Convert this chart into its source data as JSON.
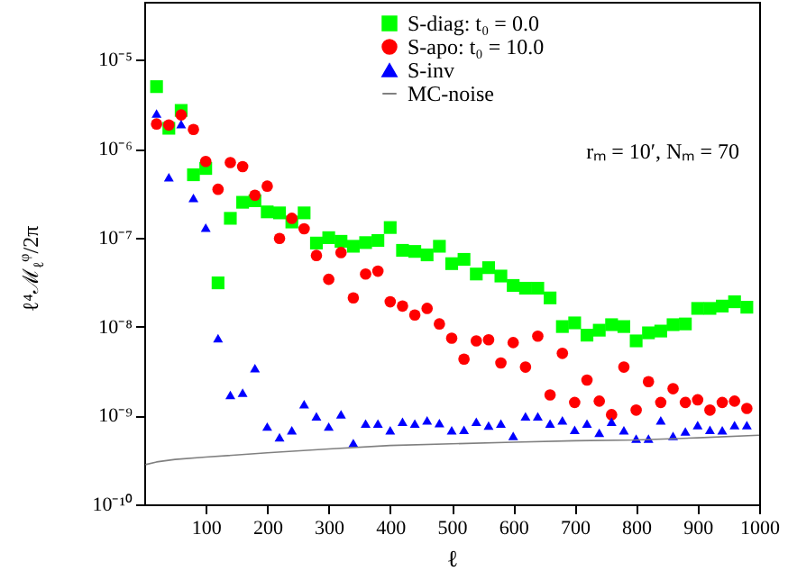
{
  "chart_data": {
    "type": "scatter",
    "xlabel": "ℓ",
    "ylabel": "ℓ⁴ℳ$_{ℓ}$$^{φ}$/2π",
    "annotations": [
      "rₘ = 10′, Nₘ = 70"
    ],
    "x": [
      20,
      40,
      60,
      80,
      100,
      120,
      140,
      160,
      180,
      200,
      220,
      240,
      260,
      280,
      300,
      320,
      340,
      360,
      380,
      400,
      420,
      440,
      460,
      480,
      500,
      520,
      540,
      560,
      580,
      600,
      620,
      640,
      660,
      680,
      700,
      720,
      740,
      760,
      780,
      800,
      820,
      840,
      860,
      880,
      900,
      920,
      940,
      960,
      980
    ],
    "series": [
      {
        "name": "S-diag: t₀ = 0.0",
        "type": "scatter",
        "marker": "square",
        "color": "#00ff00",
        "values": [
          5e-06,
          1.7e-06,
          2.7e-06,
          5.1e-07,
          6e-07,
          3.1e-08,
          1.65e-07,
          2.5e-07,
          2.6e-07,
          1.95e-07,
          1.9e-07,
          1.5e-07,
          1.9e-07,
          8.7e-08,
          1e-07,
          9.1e-08,
          8e-08,
          8.8e-08,
          9.3e-08,
          1.3e-07,
          7.2e-08,
          7e-08,
          6.4e-08,
          8e-08,
          5.1e-08,
          5.7e-08,
          3.9e-08,
          4.6e-08,
          3.7e-08,
          2.9e-08,
          2.7e-08,
          2.7e-08,
          2.1e-08,
          1e-08,
          1.1e-08,
          8e-09,
          9.1e-09,
          1.05e-08,
          1e-08,
          6.9e-09,
          8.5e-09,
          8.9e-09,
          1.05e-08,
          1.07e-08,
          1.6e-08,
          1.6e-08,
          1.7e-08,
          1.9e-08,
          1.65e-08
        ]
      },
      {
        "name": "S-apo: t₀ = 10.0",
        "type": "scatter",
        "marker": "circle",
        "color": "#ff0000",
        "values": [
          1.9e-06,
          1.85e-06,
          2.4e-06,
          1.65e-06,
          7.2e-07,
          3.5e-07,
          7e-07,
          6.3e-07,
          3e-07,
          3.8e-07,
          9.8e-08,
          1.65e-07,
          1.26e-07,
          6.3e-08,
          3.4e-08,
          6.8e-08,
          2.1e-08,
          3.9e-08,
          4.2e-08,
          1.9e-08,
          1.7e-08,
          1.35e-08,
          1.6e-08,
          1.07e-08,
          7.4e-09,
          4.3e-09,
          6.9e-09,
          7.1e-09,
          3.9e-09,
          6.6e-09,
          3.5e-09,
          7.8e-09,
          1.7e-09,
          5e-09,
          1.4e-09,
          2.5e-09,
          1.45e-09,
          1.02e-09,
          3.5e-09,
          1.15e-09,
          2.4e-09,
          1.4e-09,
          2e-09,
          1.4e-09,
          1.5e-09,
          1.15e-09,
          1.4e-09,
          1.45e-09,
          1.2e-09
        ]
      },
      {
        "name": "S-inv",
        "type": "scatter",
        "marker": "triangle",
        "color": "#0000ff",
        "values": [
          2.5e-06,
          4.8e-07,
          1.9e-06,
          2.8e-07,
          1.3e-07,
          7.4e-09,
          1.7e-09,
          1.8e-09,
          3.4e-09,
          7.5e-10,
          5.7e-10,
          6.8e-10,
          1.34e-09,
          9.8e-10,
          7.5e-10,
          1.03e-09,
          4.9e-10,
          8.1e-10,
          8.1e-10,
          6.8e-10,
          8.5e-10,
          8.1e-10,
          8.8e-10,
          8.2e-10,
          6.8e-10,
          6.9e-10,
          8.5e-10,
          7.7e-10,
          8.1e-10,
          5.9e-10,
          9.8e-10,
          9.8e-10,
          8.1e-10,
          8.8e-10,
          6.9e-10,
          8.1e-10,
          6.4e-10,
          8.5e-10,
          6.8e-10,
          5.5e-10,
          5.5e-10,
          8.8e-10,
          5.9e-10,
          6.6e-10,
          7.8e-10,
          6.9e-10,
          6.8e-10,
          7.8e-10,
          7.8e-10
        ]
      },
      {
        "name": "MC-noise",
        "type": "line",
        "marker": "none",
        "color": "#808080",
        "x": [
          2,
          20,
          50,
          100,
          200,
          300,
          400,
          500,
          600,
          700,
          800,
          900,
          1000
        ],
        "values": [
          2.8e-10,
          3e-10,
          3.2e-10,
          3.4e-10,
          3.8e-10,
          4.2e-10,
          4.6e-10,
          4.8e-10,
          5e-10,
          5.2e-10,
          5.3e-10,
          5.6e-10,
          6e-10
        ]
      }
    ],
    "xlim": [
      0,
      1000
    ],
    "xticks": [
      100,
      200,
      300,
      400,
      500,
      600,
      700,
      800,
      900,
      1000
    ],
    "ylim": [
      1e-10,
      4.5e-05
    ],
    "log": true,
    "yticks": [
      {
        "value": 1e-10,
        "label": "10⁻¹⁰"
      },
      {
        "value": 1e-09,
        "label": "10⁻⁹"
      },
      {
        "value": 1e-08,
        "label": "10⁻⁸"
      },
      {
        "value": 1e-07,
        "label": "10⁻⁷"
      },
      {
        "value": 1e-06,
        "label": "10⁻⁶"
      },
      {
        "value": 1e-05,
        "label": "10⁻⁵"
      }
    ],
    "legend": "top",
    "grid": false
  }
}
